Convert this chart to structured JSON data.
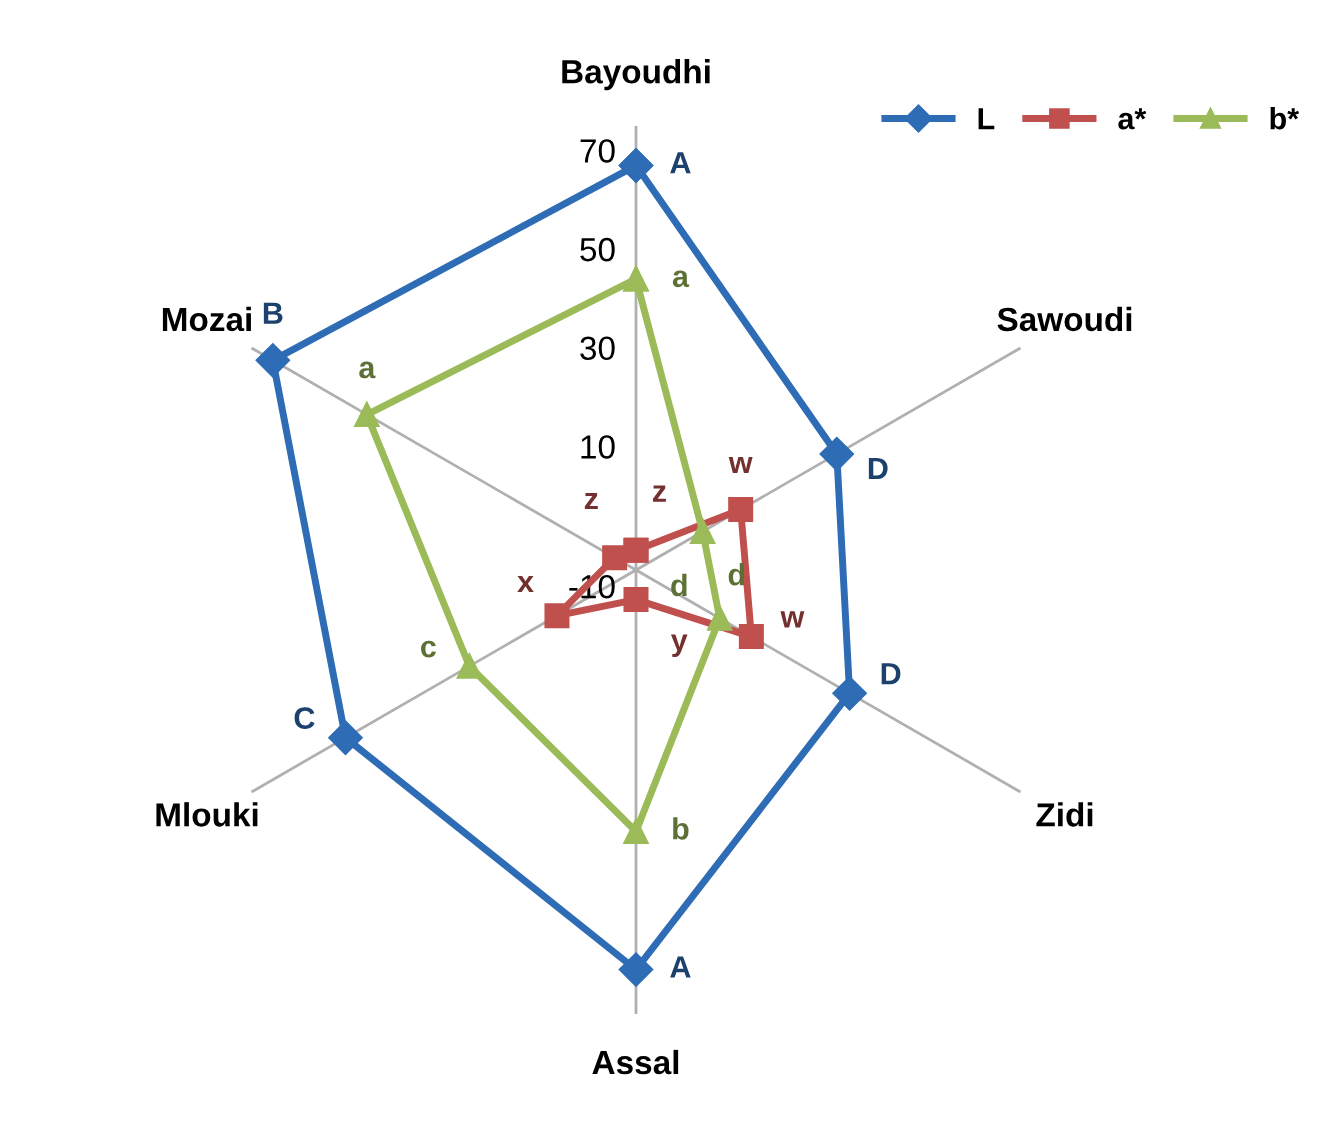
{
  "chart_data": {
    "type": "radar",
    "categories": [
      "Bayoudhi",
      "Sawoudi",
      "Zidi",
      "Assal",
      "Mlouki",
      "Mozai"
    ],
    "series": [
      {
        "name": "L",
        "color": "#2e6db5",
        "marker": "diamond",
        "values": [
          72,
          37,
          40,
          71,
          58,
          75
        ],
        "value_labels": [
          "A",
          "D",
          "D",
          "A",
          "C",
          "B"
        ]
      },
      {
        "name": "a*",
        "color": "#c0504d",
        "marker": "square",
        "values": [
          -6,
          14.5,
          17,
          -4,
          8.5,
          -5
        ],
        "value_labels": [
          "z",
          "w",
          "w",
          "y",
          "x",
          "z"
        ]
      },
      {
        "name": "b*",
        "color": "#9bbb59",
        "marker": "triangle",
        "values": [
          49,
          5.6,
          9.6,
          43,
          29,
          53
        ],
        "value_labels": [
          "a",
          "d",
          "d",
          "b",
          "c",
          "a"
        ]
      }
    ],
    "ylim": [
      -10,
      80
    ],
    "yticks": [
      -10,
      10,
      30,
      50,
      70
    ],
    "grid": "x",
    "legend": "top right"
  }
}
